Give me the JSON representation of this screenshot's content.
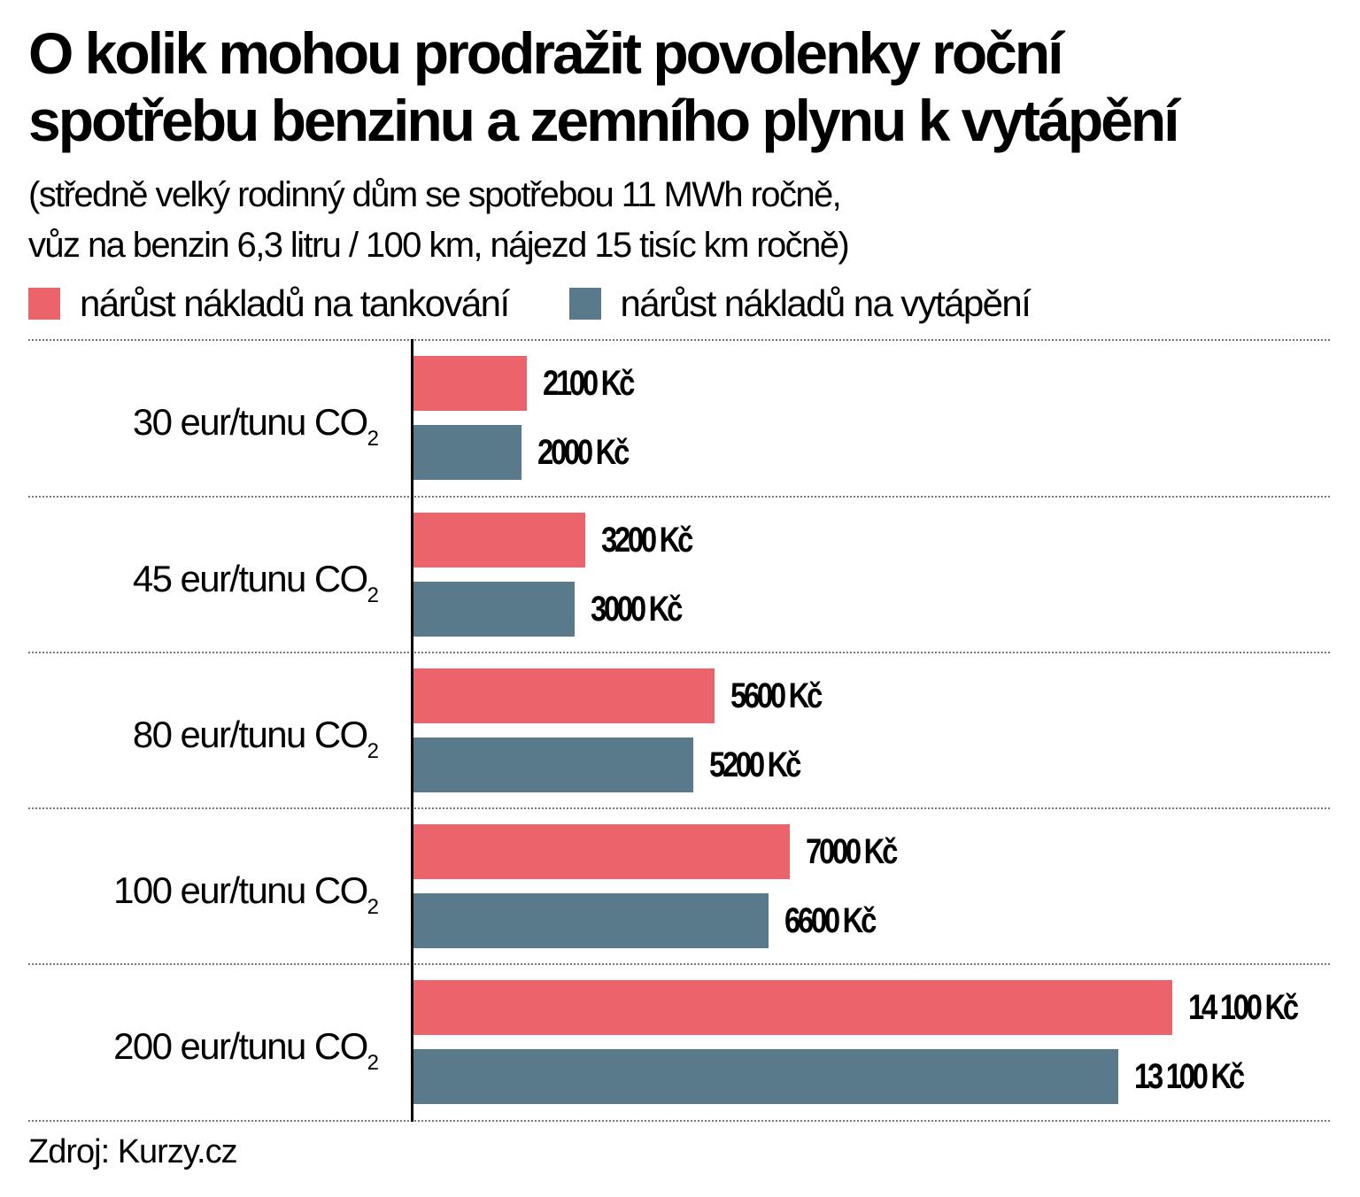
{
  "header": {
    "title_line1": "O kolik mohou prodražit povolenky roční",
    "title_line2": "spotřebu benzinu a zemního plynu k vytápění",
    "subtitle_line1": "(středně velký rodinný dům se spotřebou 11 MWh ročně,",
    "subtitle_line2": "vůz na benzin 6,3 litru / 100  km, nájezd 15 tisíc km ročně)"
  },
  "legend": [
    {
      "label": "nárůst nákladů na tankování",
      "color": "#EC636B"
    },
    {
      "label": "nárůst nákladů na vytápění",
      "color": "#587A8A"
    }
  ],
  "groups": [
    {
      "label": "30 eur/tunu CO",
      "sub": "2",
      "tankovani": "2100 Kč",
      "vytapeni": "2000 Kč"
    },
    {
      "label": "45 eur/tunu CO",
      "sub": "2",
      "tankovani": "3200 Kč",
      "vytapeni": "3000 Kč"
    },
    {
      "label": "80 eur/tunu CO",
      "sub": "2",
      "tankovani": "5600 Kč",
      "vytapeni": "5200 Kč"
    },
    {
      "label": "100 eur/tunu CO",
      "sub": "2",
      "tankovani": "7000 Kč",
      "vytapeni": "6600 Kč"
    },
    {
      "label": "200 eur/tunu CO",
      "sub": "2",
      "tankovani": "14 100 Kč",
      "vytapeni": "13 100 Kč"
    }
  ],
  "footer": {
    "source": "Zdroj: Kurzy.cz"
  },
  "chart_data": {
    "type": "bar",
    "orientation": "horizontal",
    "title": "O kolik mohou prodražit povolenky roční spotřebu benzinu a zemního plynu k vytápění",
    "subtitle": "(středně velký rodinný dům se spotřebou 11 MWh ročně, vůz na benzin 6,3 litru / 100 km, nájezd 15 tisíc km ročně)",
    "categories": [
      "30 eur/tunu CO2",
      "45 eur/tunu CO2",
      "80 eur/tunu CO2",
      "100 eur/tunu CO2",
      "200 eur/tunu CO2"
    ],
    "series": [
      {
        "name": "nárůst nákladů na tankování",
        "color": "#EC636B",
        "values": [
          2100,
          3200,
          5600,
          7000,
          14100
        ]
      },
      {
        "name": "nárůst nákladů na vytápění",
        "color": "#587A8A",
        "values": [
          2000,
          3000,
          5200,
          6600,
          13100
        ]
      }
    ],
    "unit": "Kč",
    "xlabel": "",
    "ylabel": "",
    "grid": "dotted horizontal separators between groups",
    "legend_position": "top",
    "source": "Zdroj: Kurzy.cz"
  }
}
